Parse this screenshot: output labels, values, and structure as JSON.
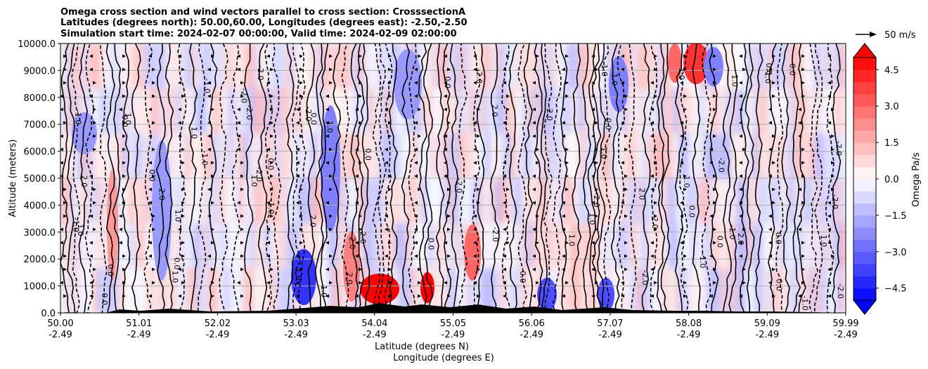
{
  "chart_data": {
    "type": "heatmap",
    "title_lines": [
      "Omega cross section and wind vectors parallel to cross section: CrosssectionA",
      "Latitudes (degrees north): 50.00,60.00, Longitudes (degrees east): -2.50,-2.50",
      "Simulation start time: 2024-02-07 00:00:00, Valid time: 2024-02-09 02:00:00"
    ],
    "xlabel": "Latitude (degrees N)",
    "xlabel2": "Longitude (degrees E)",
    "ylabel": "Altitude (meters)",
    "x_ticks": [
      {
        "lat": "50.00",
        "lon": "-2.49"
      },
      {
        "lat": "51.01",
        "lon": "-2.49"
      },
      {
        "lat": "52.02",
        "lon": "-2.49"
      },
      {
        "lat": "53.03",
        "lon": "-2.49"
      },
      {
        "lat": "54.04",
        "lon": "-2.49"
      },
      {
        "lat": "55.05",
        "lon": "-2.49"
      },
      {
        "lat": "56.06",
        "lon": "-2.49"
      },
      {
        "lat": "57.07",
        "lon": "-2.49"
      },
      {
        "lat": "58.08",
        "lon": "-2.49"
      },
      {
        "lat": "59.09",
        "lon": "-2.49"
      },
      {
        "lat": "59.99",
        "lon": "-2.49"
      }
    ],
    "y_ticks": [
      "0.0",
      "1000.0",
      "2000.0",
      "3000.0",
      "4000.0",
      "5000.0",
      "6000.0",
      "7000.0",
      "8000.0",
      "9000.0",
      "10000.0"
    ],
    "ylim": [
      0,
      10000
    ],
    "grid": "horizontal",
    "colorbar": {
      "label": "Omega Pa/s",
      "ticks": [
        "4.5",
        "3.0",
        "1.5",
        "0.0",
        "−1.5",
        "−3.0",
        "−4.5"
      ],
      "range": [
        -5,
        5
      ],
      "extend": "both",
      "colors_high": "#ff0000",
      "colors_low": "#0000ff"
    },
    "quiver_key": "50 m/s",
    "contour_labels": [
      "0.0",
      "-1.0",
      "1.0",
      "2.0",
      "-2.0"
    ]
  }
}
